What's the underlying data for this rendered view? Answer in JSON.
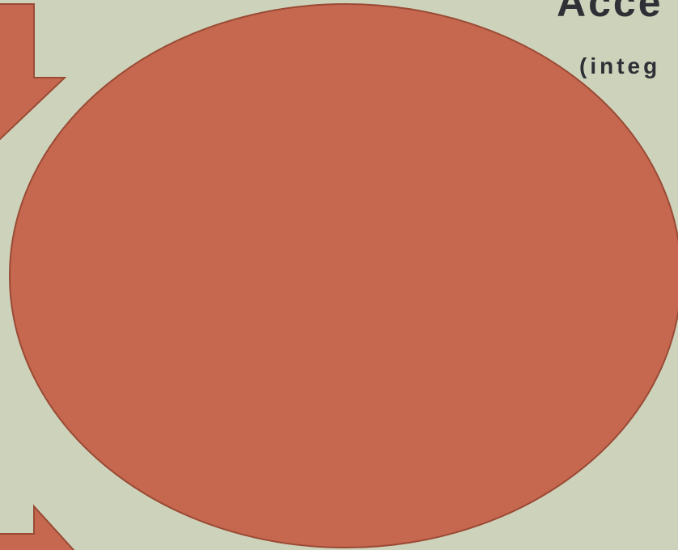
{
  "slide": {
    "title": "Acce",
    "subtitle": "(integ"
  },
  "colors": {
    "background": "#cdd3bb",
    "shape_fill": "#c5684f",
    "shape_stroke": "#9a4a35",
    "text": "#2f3036"
  },
  "shapes": {
    "top_arrow": "down-arrow",
    "bottom_arrow": "right-arrow",
    "center": "oval"
  }
}
